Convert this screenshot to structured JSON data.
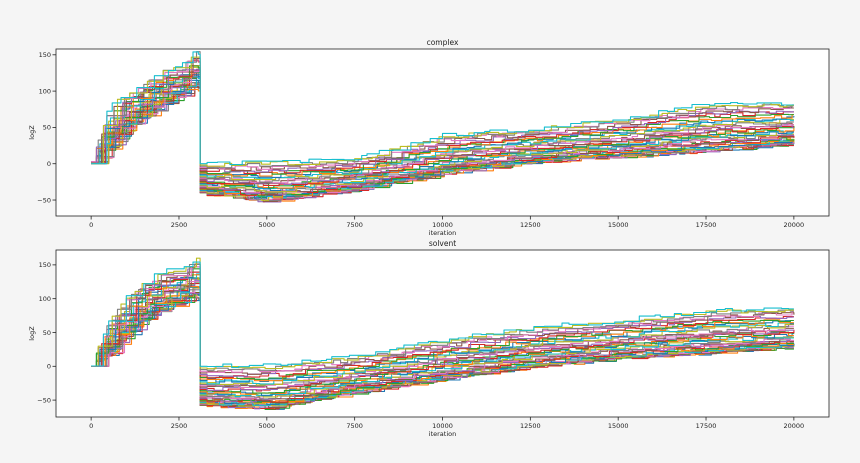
{
  "chart_data": [
    {
      "type": "line",
      "title": "complex",
      "xlabel": "iteration",
      "ylabel": "logZ",
      "xlim": [
        -1000,
        21000
      ],
      "ylim": [
        -72,
        158
      ],
      "xticks": [
        0,
        2500,
        5000,
        7500,
        10000,
        12500,
        15000,
        17500,
        20000
      ],
      "xtick_labels": [
        "0",
        "2500",
        "5000",
        "7500",
        "10000",
        "12500",
        "15000",
        "17500",
        "20000"
      ],
      "yticks": [
        -50,
        0,
        50,
        100,
        150
      ],
      "ytick_labels": [
        "−50",
        "0",
        "50",
        "100",
        "150"
      ],
      "grid": false,
      "legend": "none",
      "series_count": 40,
      "drop_iteration": 3100,
      "envelope": {
        "x": [
          0,
          500,
          1000,
          1500,
          2000,
          2500,
          3000,
          3100,
          5000,
          7500,
          10000,
          12500,
          15000,
          17500,
          20000
        ],
        "upper": [
          0,
          80,
          97,
          112,
          130,
          132,
          157,
          0,
          2,
          6,
          40,
          48,
          62,
          82,
          84
        ],
        "lower": [
          0,
          25,
          52,
          67,
          82,
          95,
          110,
          -40,
          -52,
          -35,
          -13,
          2,
          10,
          18,
          28
        ]
      }
    },
    {
      "type": "line",
      "title": "solvent",
      "xlabel": "iteration",
      "ylabel": "logZ",
      "xlim": [
        -1000,
        21000
      ],
      "ylim": [
        -75,
        172
      ],
      "xticks": [
        0,
        2500,
        5000,
        7500,
        10000,
        12500,
        15000,
        17500,
        20000
      ],
      "xtick_labels": [
        "0",
        "2500",
        "5000",
        "7500",
        "10000",
        "12500",
        "15000",
        "17500",
        "20000"
      ],
      "yticks": [
        -50,
        0,
        50,
        100,
        150
      ],
      "ytick_labels": [
        "−50",
        "0",
        "50",
        "100",
        "150"
      ],
      "grid": false,
      "legend": "none",
      "series_count": 40,
      "drop_iteration": 3100,
      "envelope": {
        "x": [
          0,
          500,
          1000,
          1500,
          2000,
          2500,
          3000,
          3100,
          5000,
          7500,
          10000,
          12500,
          15000,
          17500,
          20000
        ],
        "upper": [
          0,
          70,
          105,
          125,
          140,
          145,
          160,
          0,
          2,
          15,
          40,
          57,
          68,
          82,
          87
        ],
        "lower": [
          0,
          22,
          50,
          72,
          85,
          95,
          105,
          -58,
          -62,
          -38,
          -18,
          0,
          12,
          20,
          28
        ]
      }
    }
  ],
  "colors": [
    "#1f77b4",
    "#ff7f0e",
    "#2ca02c",
    "#d62728",
    "#9467bd",
    "#8c564b",
    "#e377c2",
    "#7f7f7f",
    "#bcbd22",
    "#17becf"
  ],
  "frame_color": "#222222",
  "plot_background": "#ffffff"
}
